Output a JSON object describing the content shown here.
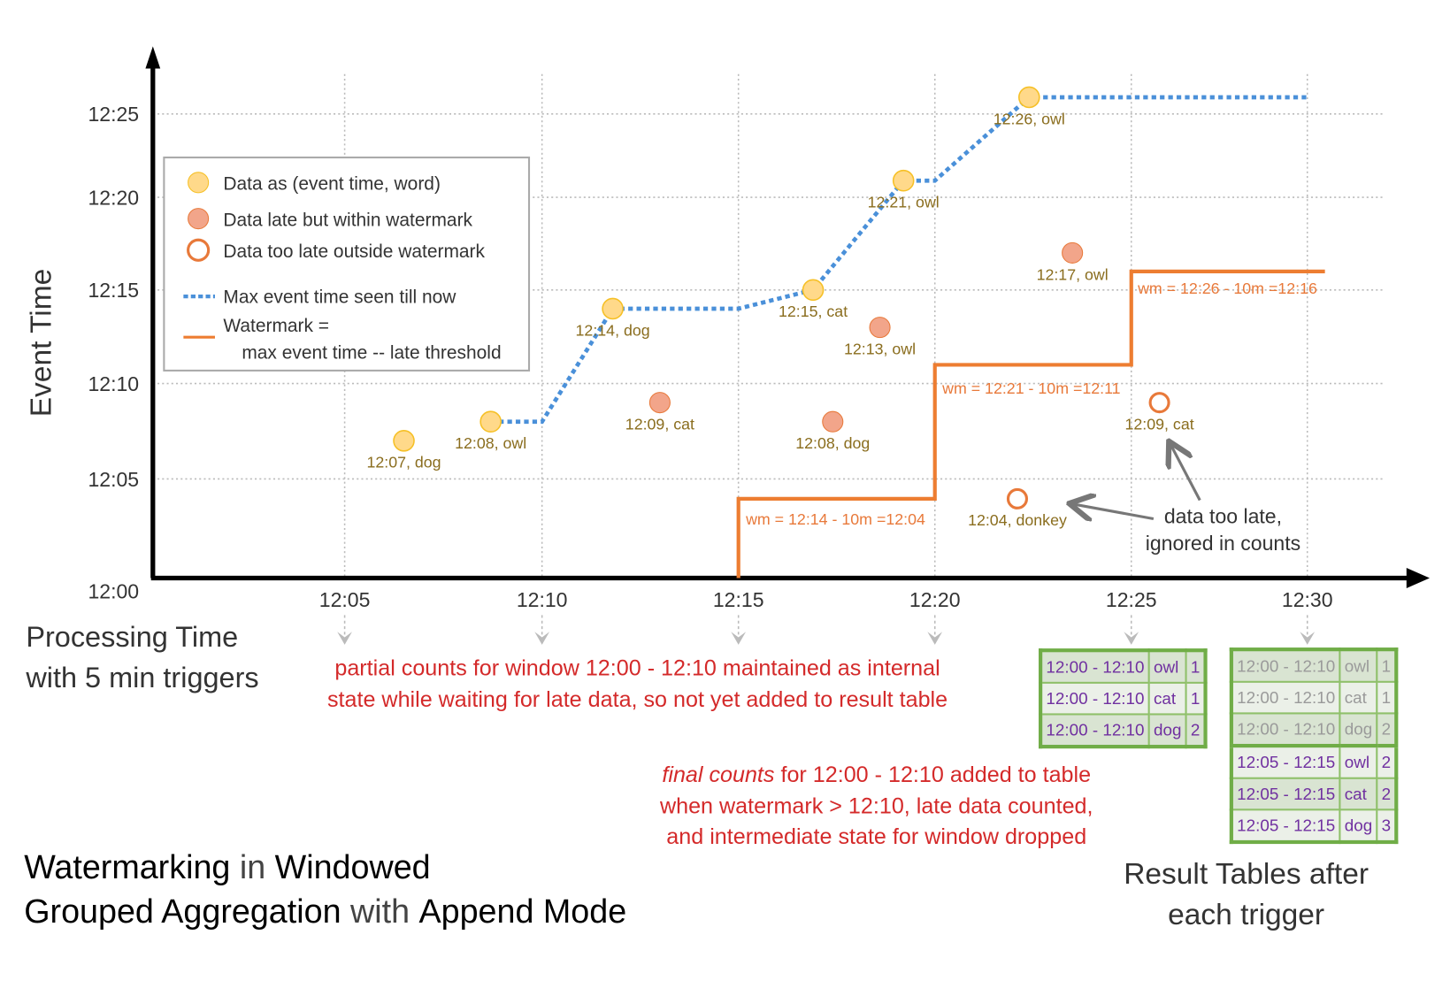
{
  "colors": {
    "on_time": "#ffd98a",
    "on_time_stroke": "#f6c026",
    "late": "#f2a58a",
    "late_stroke": "#e8793a",
    "too_late": "#e8793a",
    "max_line": "#4a90d9",
    "watermark": "#ed7d31",
    "table_border": "#70ad47",
    "table_text": "#7030a0",
    "note_red": "#d42a2a"
  },
  "axes": {
    "y_label": "Event Time",
    "x_label_lines": [
      "Processing Time",
      "with 5 min triggers"
    ],
    "y_ticks": [
      {
        "label": "12:00",
        "value": 0
      },
      {
        "label": "12:05",
        "value": 5
      },
      {
        "label": "12:10",
        "value": 10
      },
      {
        "label": "12:15",
        "value": 15
      },
      {
        "label": "12:20",
        "value": 20
      },
      {
        "label": "12:25",
        "value": 25
      }
    ],
    "x_ticks": [
      {
        "label": "12:05",
        "value": 5
      },
      {
        "label": "12:10",
        "value": 10
      },
      {
        "label": "12:15",
        "value": 15
      },
      {
        "label": "12:20",
        "value": 20
      },
      {
        "label": "12:25",
        "value": 25
      },
      {
        "label": "12:30",
        "value": 30
      }
    ]
  },
  "legend": {
    "items": [
      "Data as (event time, word)",
      "Data late but within watermark",
      "Data too late outside watermark",
      "Max event time seen till now"
    ],
    "watermark_lines": [
      "Watermark =",
      "max event time -- late threshold"
    ]
  },
  "points": [
    {
      "label": "12:07, dog",
      "event": 7,
      "processing": 6.5,
      "kind": "on-time"
    },
    {
      "label": "12:08, owl",
      "event": 8,
      "processing": 8.7,
      "kind": "on-time"
    },
    {
      "label": "12:14, dog",
      "event": 14,
      "processing": 11.8,
      "kind": "on-time"
    },
    {
      "label": "12:09, cat",
      "event": 9,
      "processing": 13.0,
      "kind": "late"
    },
    {
      "label": "12:15, cat",
      "event": 15,
      "processing": 16.9,
      "kind": "on-time"
    },
    {
      "label": "12:08, dog",
      "event": 8,
      "processing": 17.4,
      "kind": "late"
    },
    {
      "label": "12:13, owl",
      "event": 13,
      "processing": 18.6,
      "kind": "late"
    },
    {
      "label": "12:21, owl",
      "event": 21,
      "processing": 19.2,
      "kind": "on-time"
    },
    {
      "label": "12:04, donkey",
      "event": 4,
      "processing": 22.1,
      "kind": "too-late"
    },
    {
      "label": "12:26, owl",
      "event": 26,
      "processing": 22.4,
      "kind": "on-time"
    },
    {
      "label": "12:17, owl",
      "event": 17,
      "processing": 23.5,
      "kind": "late"
    },
    {
      "label": "12:09, cat",
      "event": 9,
      "processing": 25.8,
      "kind": "too-late"
    }
  ],
  "max_event_line": [
    [
      8.7,
      8
    ],
    [
      10,
      8
    ],
    [
      11.8,
      14
    ],
    [
      15,
      14
    ],
    [
      16.9,
      15
    ],
    [
      19.2,
      21
    ],
    [
      20,
      21
    ],
    [
      22.4,
      26
    ],
    [
      30,
      26
    ]
  ],
  "watermark_line": [
    [
      15,
      0
    ],
    [
      15,
      4
    ],
    [
      20,
      4
    ],
    [
      20,
      11
    ],
    [
      25,
      11
    ],
    [
      25,
      16
    ],
    [
      30.5,
      16
    ]
  ],
  "watermark_labels": [
    "wm = 12:14 - 10m =12:04",
    "wm = 12:21 - 10m =12:11",
    "wm = 12:26 - 10m =12:16"
  ],
  "notes": {
    "too_late": [
      "data too late,",
      "ignored in counts"
    ],
    "partial": [
      "partial counts for window 12:00 - 12:10 maintained as internal",
      "state while waiting for late data, so not yet added  to result table"
    ],
    "final_emph": "final counts",
    "final_rest": " for 12:00 - 12:10 added to table",
    "final_lines": [
      "when watermark > 12:10, late data counted,",
      "and intermediate state for window dropped"
    ],
    "tables_caption": [
      "Result Tables after",
      "each trigger"
    ]
  },
  "result_tables": [
    {
      "trigger": "12:25",
      "rows": [
        [
          "12:00 - 12:10",
          "owl",
          "1"
        ],
        [
          "12:00 - 12:10",
          "cat",
          "1"
        ],
        [
          "12:00 - 12:10",
          "dog",
          "2"
        ]
      ]
    },
    {
      "trigger": "12:30",
      "rows": [
        [
          "12:00 - 12:10",
          "owl",
          "1"
        ],
        [
          "12:00 - 12:10",
          "cat",
          "1"
        ],
        [
          "12:00 - 12:10",
          "dog",
          "2"
        ],
        [
          "12:05 - 12:15",
          "owl",
          "2"
        ],
        [
          "12:05 - 12:15",
          "cat",
          "2"
        ],
        [
          "12:05 - 12:15",
          "dog",
          "3"
        ]
      ],
      "previous_rows": 3
    }
  ],
  "title": {
    "parts": [
      [
        "Watermarking",
        true
      ],
      [
        " in ",
        false
      ],
      [
        "Windowed",
        true
      ]
    ],
    "parts2": [
      [
        "Grouped Aggregation",
        true
      ],
      [
        " with ",
        false
      ],
      [
        "Append Mode",
        true
      ]
    ]
  }
}
